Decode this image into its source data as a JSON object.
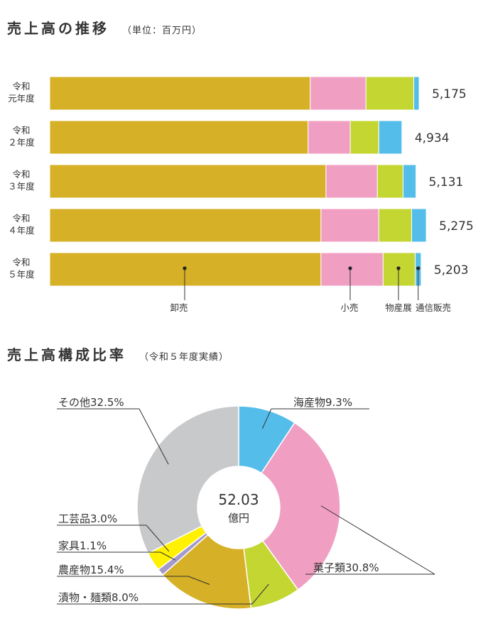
{
  "section1": {
    "title": "売上高の推移",
    "unit": "（単位：百万円）"
  },
  "section2": {
    "title": "売上高構成比率",
    "note": "（令和５年度実績）"
  },
  "colors": {
    "wholesale": "#d6b026",
    "retail": "#f09fc2",
    "exhibition": "#c3d631",
    "mailorder": "#55bdea"
  },
  "chart_data": [
    {
      "type": "bar",
      "orientation": "horizontal",
      "stacked": true,
      "categories": [
        [
          "令和",
          "元年度"
        ],
        [
          "令和",
          "２年度"
        ],
        [
          "令和",
          "３年度"
        ],
        [
          "令和",
          "４年度"
        ],
        [
          "令和",
          "５年度"
        ]
      ],
      "series": [
        {
          "name": "卸売",
          "color": "#d6b026",
          "values": [
            3650,
            3620,
            3870,
            3800,
            3800
          ]
        },
        {
          "name": "小売",
          "color": "#f09fc2",
          "values": [
            780,
            590,
            720,
            810,
            870
          ]
        },
        {
          "name": "物産展",
          "color": "#c3d631",
          "values": [
            670,
            400,
            360,
            460,
            450
          ]
        },
        {
          "name": "通信販売",
          "color": "#55bdea",
          "values": [
            75,
            324,
            181,
            205,
            83
          ]
        }
      ],
      "totals": [
        "5,175",
        "4,934",
        "5,131",
        "5,275",
        "5,203"
      ],
      "xlim": [
        0,
        5500
      ]
    },
    {
      "type": "pie",
      "donut": true,
      "center_value": "52.03",
      "center_unit": "億円",
      "slices": [
        {
          "label": "海産物",
          "value": 9.3,
          "text": "9.3%",
          "color": "#55bdea"
        },
        {
          "label": "菓子類",
          "value": 30.8,
          "text": "30.8%",
          "color": "#f09fc2"
        },
        {
          "label": "漬物・麺類",
          "value": 8.0,
          "text": "8.0%",
          "color": "#c3d631"
        },
        {
          "label": "農産物",
          "value": 15.4,
          "text": "15.4%",
          "color": "#d6b026"
        },
        {
          "label": "家具",
          "value": 1.1,
          "text": "1.1%",
          "color": "#a59acb"
        },
        {
          "label": "工芸品",
          "value": 3.0,
          "text": "3.0%",
          "color": "#fff100"
        },
        {
          "label": "その他",
          "value": 32.5,
          "text": "32.5%",
          "color": "#c8c9cb"
        }
      ]
    }
  ]
}
